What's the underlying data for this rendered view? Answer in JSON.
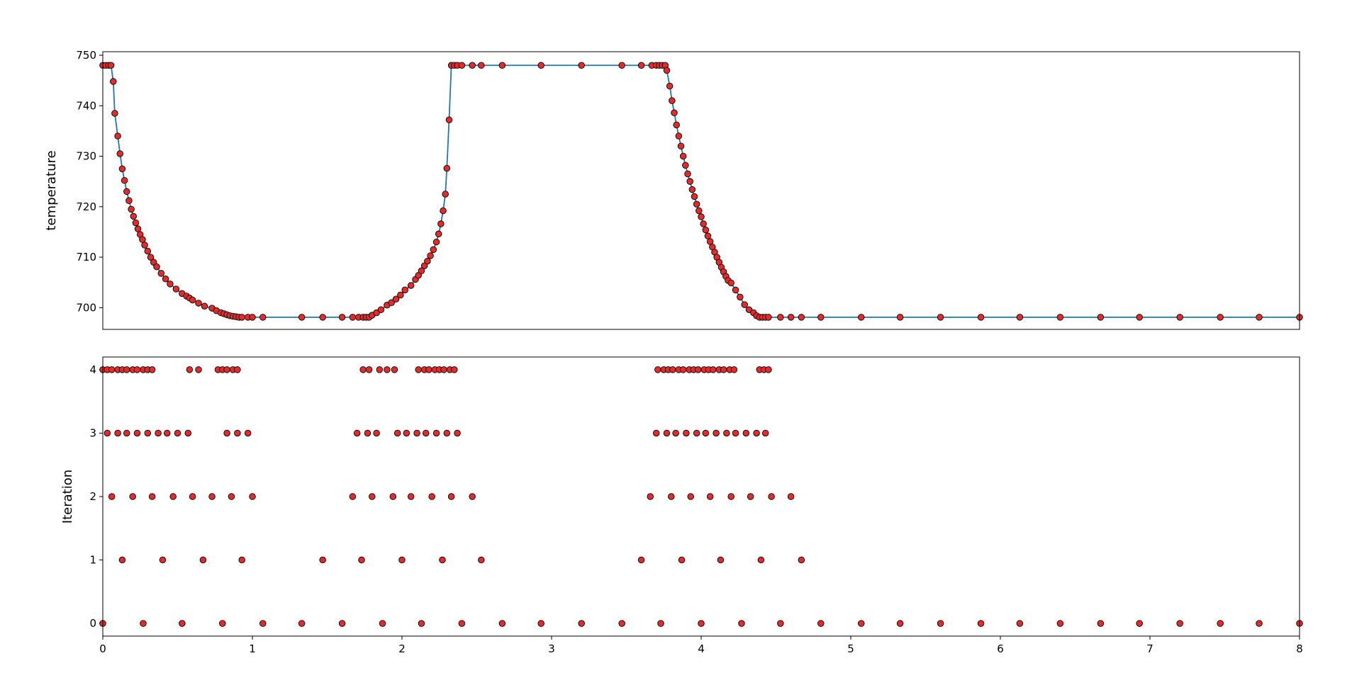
{
  "chart_data": [
    {
      "type": "line",
      "ylabel": "temperature",
      "color": "#1f77b4",
      "marker_color": "#e32b2b",
      "marker_edge": "#000000",
      "xlim": [
        0,
        8
      ],
      "ylim": [
        695.7,
        750.7
      ],
      "yticks": [
        700,
        710,
        720,
        730,
        740,
        750
      ],
      "x": [
        0,
        0.02,
        0.04,
        0.055,
        0.07,
        0.08,
        0.1,
        0.115,
        0.13,
        0.145,
        0.16,
        0.175,
        0.19,
        0.205,
        0.22,
        0.235,
        0.25,
        0.265,
        0.28,
        0.3,
        0.32,
        0.34,
        0.36,
        0.39,
        0.42,
        0.45,
        0.49,
        0.53,
        0.56,
        0.58,
        0.6,
        0.64,
        0.68,
        0.73,
        0.76,
        0.79,
        0.81,
        0.83,
        0.85,
        0.87,
        0.89,
        0.91,
        0.93,
        0.97,
        1.0,
        1.07,
        1.33,
        1.47,
        1.6,
        1.67,
        1.71,
        1.74,
        1.76,
        1.78,
        1.8,
        1.83,
        1.86,
        1.9,
        1.93,
        1.96,
        1.99,
        2.02,
        2.06,
        2.09,
        2.11,
        2.13,
        2.15,
        2.17,
        2.19,
        2.21,
        2.23,
        2.245,
        2.26,
        2.275,
        2.29,
        2.3,
        2.315,
        2.33,
        2.35,
        2.37,
        2.4,
        2.47,
        2.53,
        2.67,
        2.93,
        3.2,
        3.47,
        3.6,
        3.67,
        3.7,
        3.72,
        3.74,
        3.76,
        3.77,
        3.79,
        3.805,
        3.82,
        3.835,
        3.85,
        3.865,
        3.88,
        3.895,
        3.91,
        3.925,
        3.94,
        3.955,
        3.97,
        3.985,
        4.0,
        4.015,
        4.03,
        4.045,
        4.06,
        4.075,
        4.09,
        4.105,
        4.12,
        4.135,
        4.15,
        4.165,
        4.18,
        4.2,
        4.23,
        4.26,
        4.29,
        4.32,
        4.35,
        4.37,
        4.39,
        4.41,
        4.43,
        4.45,
        4.53,
        4.6,
        4.67,
        4.8,
        5.07,
        5.33,
        5.6,
        5.87,
        6.13,
        6.4,
        6.67,
        6.93,
        7.2,
        7.47,
        7.73,
        8.0
      ],
      "values": [
        748,
        748,
        748,
        748,
        744.8,
        738.5,
        734,
        730.5,
        727.5,
        725.2,
        723,
        721.2,
        719.5,
        718.1,
        716.8,
        715.6,
        714.5,
        713.5,
        712.4,
        711.2,
        710,
        709,
        708.1,
        706.8,
        705.7,
        704.7,
        703.7,
        702.8,
        702.3,
        701.9,
        701.5,
        700.9,
        700.3,
        699.9,
        699.4,
        699,
        698.8,
        698.6,
        698.4,
        698.3,
        698.2,
        698.1,
        698.1,
        698.1,
        698.1,
        698.1,
        698.1,
        698.1,
        698.1,
        698.1,
        698.1,
        698.1,
        698.1,
        698.1,
        698.5,
        699,
        699.6,
        700.5,
        701,
        701.7,
        702.5,
        703.5,
        704.4,
        705.6,
        706.4,
        707.3,
        708.3,
        709.2,
        710.3,
        711.5,
        713,
        714.6,
        716.6,
        719.2,
        722.5,
        727.6,
        737.2,
        748,
        748,
        748,
        748,
        748,
        748,
        748,
        748,
        748,
        748,
        748,
        748,
        748,
        748,
        748,
        748,
        747,
        743.9,
        741,
        738.6,
        736.2,
        734,
        732,
        730,
        728.2,
        726.5,
        725,
        723.4,
        722,
        720.5,
        719.2,
        718,
        716.6,
        715.4,
        714.2,
        713.1,
        712,
        711,
        710,
        709,
        708,
        707.1,
        706.2,
        705.4,
        704.9,
        703.5,
        702.1,
        700.6,
        699.6,
        699,
        698.4,
        698.1,
        698.1,
        698.1,
        698.1,
        698.1,
        698.1,
        698.1,
        698.1,
        698.1,
        698.1,
        698.1,
        698.1,
        698.1,
        698.1,
        698.1,
        698.1,
        698.1,
        698.1,
        698.1,
        698.1
      ]
    },
    {
      "type": "scatter",
      "ylabel": "Iteration",
      "marker_color": "#e32b2b",
      "marker_edge": "#000000",
      "xlim": [
        0,
        8
      ],
      "xticks": [
        0,
        1,
        2,
        3,
        4,
        5,
        6,
        7,
        8
      ],
      "ylim": [
        -0.2,
        4.2
      ],
      "yticks": [
        0,
        1,
        2,
        3,
        4
      ],
      "x": [
        0,
        0.27,
        0.53,
        0.8,
        1.07,
        1.33,
        1.6,
        1.87,
        2.13,
        2.4,
        2.67,
        2.93,
        3.2,
        3.47,
        3.73,
        4.0,
        4.27,
        4.53,
        4.8,
        5.07,
        5.33,
        5.6,
        5.87,
        6.13,
        6.4,
        6.67,
        6.93,
        7.2,
        7.47,
        7.73,
        8.0,
        0.13,
        0.4,
        0.67,
        0.93,
        1.47,
        1.73,
        2.0,
        2.27,
        2.53,
        3.6,
        3.87,
        4.13,
        4.4,
        4.67,
        0.06,
        0.2,
        0.33,
        0.47,
        0.6,
        0.73,
        0.86,
        1.0,
        1.67,
        1.8,
        1.94,
        2.06,
        2.2,
        2.33,
        2.47,
        3.66,
        3.8,
        3.93,
        4.06,
        4.2,
        4.33,
        4.47,
        4.6,
        0.03,
        0.1,
        0.16,
        0.23,
        0.3,
        0.37,
        0.43,
        0.5,
        0.57,
        0.83,
        0.9,
        0.97,
        1.7,
        1.77,
        1.83,
        1.97,
        2.03,
        2.1,
        2.16,
        2.23,
        2.3,
        2.37,
        3.7,
        3.77,
        3.83,
        3.9,
        3.97,
        4.03,
        4.1,
        4.17,
        4.23,
        4.3,
        4.37,
        4.43,
        0,
        0.03,
        0.06,
        0.1,
        0.13,
        0.16,
        0.2,
        0.23,
        0.27,
        0.3,
        0.33,
        0.58,
        0.64,
        0.77,
        0.8,
        0.83,
        0.87,
        0.9,
        1.74,
        1.78,
        1.85,
        1.9,
        1.95,
        2.11,
        2.15,
        2.18,
        2.22,
        2.25,
        2.28,
        2.32,
        2.35,
        3.71,
        3.75,
        3.78,
        3.81,
        3.85,
        3.88,
        3.92,
        3.95,
        3.98,
        4.02,
        4.05,
        4.08,
        4.12,
        4.15,
        4.19,
        4.22,
        4.39,
        4.42,
        4.45
      ],
      "values": [
        0,
        0,
        0,
        0,
        0,
        0,
        0,
        0,
        0,
        0,
        0,
        0,
        0,
        0,
        0,
        0,
        0,
        0,
        0,
        0,
        0,
        0,
        0,
        0,
        0,
        0,
        0,
        0,
        0,
        0,
        0,
        1,
        1,
        1,
        1,
        1,
        1,
        1,
        1,
        1,
        1,
        1,
        1,
        1,
        1,
        2,
        2,
        2,
        2,
        2,
        2,
        2,
        2,
        2,
        2,
        2,
        2,
        2,
        2,
        2,
        2,
        2,
        2,
        2,
        2,
        2,
        2,
        2,
        3,
        3,
        3,
        3,
        3,
        3,
        3,
        3,
        3,
        3,
        3,
        3,
        3,
        3,
        3,
        3,
        3,
        3,
        3,
        3,
        3,
        3,
        3,
        3,
        3,
        3,
        3,
        3,
        3,
        3,
        3,
        3,
        3,
        3,
        4,
        4,
        4,
        4,
        4,
        4,
        4,
        4,
        4,
        4,
        4,
        4,
        4,
        4,
        4,
        4,
        4,
        4,
        4,
        4,
        4,
        4,
        4,
        4,
        4,
        4,
        4,
        4,
        4,
        4,
        4,
        4,
        4,
        4,
        4,
        4,
        4,
        4,
        4,
        4,
        4,
        4,
        4,
        4,
        4,
        4,
        4,
        4,
        4,
        4
      ]
    }
  ]
}
